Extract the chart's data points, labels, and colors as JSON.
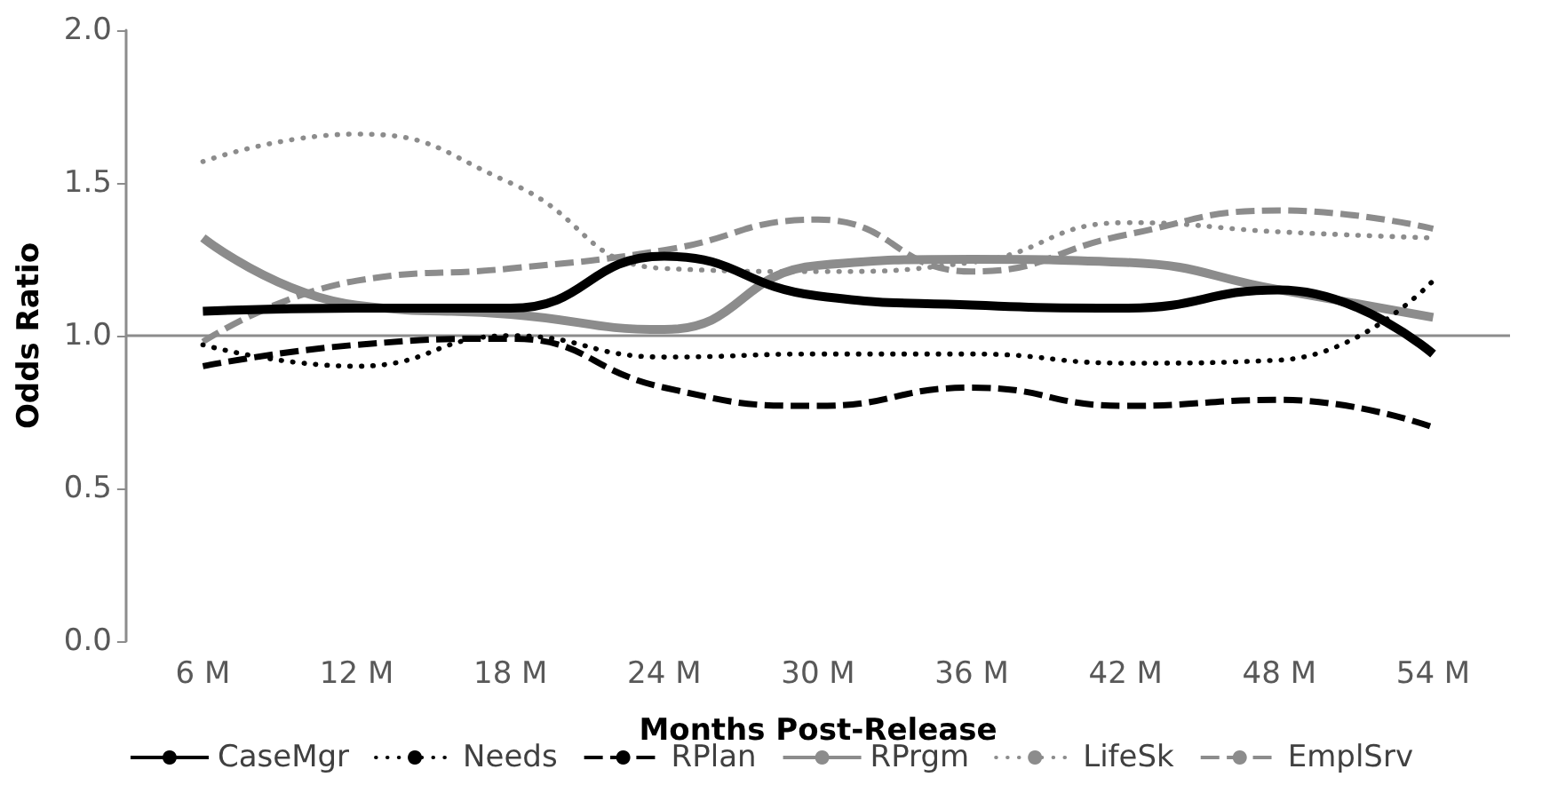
{
  "chart_data": {
    "type": "line",
    "xlabel": "Months Post-Release",
    "ylabel": "Odds Ratio",
    "categories": [
      "6 M",
      "12 M",
      "18 M",
      "24 M",
      "30 M",
      "36 M",
      "42 M",
      "48 M",
      "54 M"
    ],
    "series": [
      {
        "name": "CaseMgr",
        "color": "#000000",
        "line_style": "solid",
        "values": [
          1.08,
          1.09,
          1.09,
          1.26,
          1.13,
          1.1,
          1.09,
          1.15,
          0.94
        ]
      },
      {
        "name": "Needs",
        "color": "#000000",
        "line_style": "dotted",
        "values": [
          0.97,
          0.9,
          1.0,
          0.93,
          0.94,
          0.94,
          0.91,
          0.92,
          1.18
        ]
      },
      {
        "name": "RPlan",
        "color": "#000000",
        "line_style": "dashed",
        "values": [
          0.9,
          0.97,
          0.99,
          0.83,
          0.77,
          0.83,
          0.77,
          0.79,
          0.7
        ]
      },
      {
        "name": "RPrgm",
        "color": "#8c8c8c",
        "line_style": "solid",
        "values": [
          1.32,
          1.1,
          1.07,
          1.02,
          1.23,
          1.25,
          1.24,
          1.15,
          1.06
        ]
      },
      {
        "name": "LifeSk",
        "color": "#8c8c8c",
        "line_style": "dotted",
        "values": [
          1.57,
          1.66,
          1.5,
          1.22,
          1.21,
          1.24,
          1.37,
          1.34,
          1.32
        ]
      },
      {
        "name": "EmplSrv",
        "color": "#8c8c8c",
        "line_style": "dashed",
        "values": [
          0.98,
          1.18,
          1.22,
          1.28,
          1.38,
          1.21,
          1.33,
          1.41,
          1.35
        ]
      }
    ],
    "ylim": [
      0,
      2
    ],
    "yticks": [
      {
        "value": 0,
        "label": "0.0"
      },
      0.5,
      {
        "value": 1,
        "label": "1.0"
      },
      1.5,
      {
        "value": 2,
        "label": "2.0"
      }
    ],
    "ref_lines": [
      {
        "axis": "y",
        "value": 1,
        "color": "#8c8c8c",
        "line_style": "solid"
      }
    ],
    "grid": false,
    "legend": "bottom",
    "marker": "none"
  }
}
